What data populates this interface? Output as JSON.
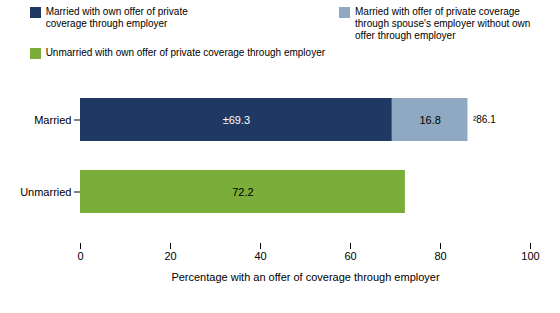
{
  "chart_data": {
    "type": "bar",
    "orientation": "horizontal",
    "stacked": true,
    "categories": [
      "Married",
      "Unmarried"
    ],
    "series": [
      {
        "name": "Married with own offer of private\ncoverage through employer",
        "color": "#1f3864",
        "values": [
          69.3,
          null
        ],
        "value_labels": [
          "±69.3",
          null
        ]
      },
      {
        "name": "Married with offer of private coverage\nthrough spouse's employer without own\noffer through employer",
        "color": "#8ea9c1",
        "values": [
          16.8,
          null
        ]
      },
      {
        "name": "Unmarried with own offer of private coverage through employer",
        "color": "#7aad3a",
        "values": [
          null,
          72.2
        ]
      }
    ],
    "data_labels": true,
    "annotations": [
      {
        "text": "²86.1",
        "category": "Married",
        "x": 86.1
      }
    ],
    "xlabel": "Percentage with an offer of coverage through employer",
    "xlim": [
      0,
      100
    ],
    "xticks": [
      0,
      20,
      40,
      60,
      80,
      100
    ],
    "legend": "top",
    "grid": false
  }
}
